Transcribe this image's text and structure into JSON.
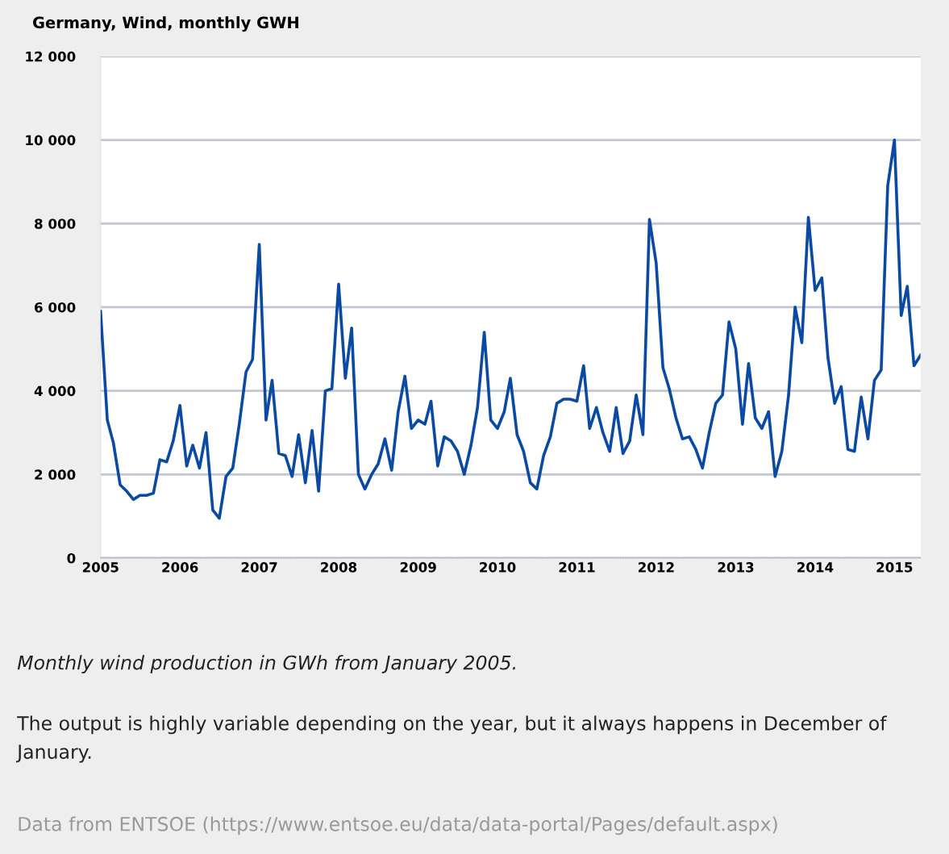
{
  "chart_data": {
    "type": "line",
    "title": "Germany, Wind, monthly GWH",
    "x": [
      "2005-01",
      "2005-02",
      "2005-03",
      "2005-04",
      "2005-05",
      "2005-06",
      "2005-07",
      "2005-08",
      "2005-09",
      "2005-10",
      "2005-11",
      "2005-12",
      "2006-01",
      "2006-02",
      "2006-03",
      "2006-04",
      "2006-05",
      "2006-06",
      "2006-07",
      "2006-08",
      "2006-09",
      "2006-10",
      "2006-11",
      "2006-12",
      "2007-01",
      "2007-02",
      "2007-03",
      "2007-04",
      "2007-05",
      "2007-06",
      "2007-07",
      "2007-08",
      "2007-09",
      "2007-10",
      "2007-11",
      "2007-12",
      "2008-01",
      "2008-02",
      "2008-03",
      "2008-04",
      "2008-05",
      "2008-06",
      "2008-07",
      "2008-08",
      "2008-09",
      "2008-10",
      "2008-11",
      "2008-12",
      "2009-01",
      "2009-02",
      "2009-03",
      "2009-04",
      "2009-05",
      "2009-06",
      "2009-07",
      "2009-08",
      "2009-09",
      "2009-10",
      "2009-11",
      "2009-12",
      "2010-01",
      "2010-02",
      "2010-03",
      "2010-04",
      "2010-05",
      "2010-06",
      "2010-07",
      "2010-08",
      "2010-09",
      "2010-10",
      "2010-11",
      "2010-12",
      "2011-01",
      "2011-02",
      "2011-03",
      "2011-04",
      "2011-05",
      "2011-06",
      "2011-07",
      "2011-08",
      "2011-09",
      "2011-10",
      "2011-11",
      "2011-12",
      "2012-01",
      "2012-02",
      "2012-03",
      "2012-04",
      "2012-05",
      "2012-06",
      "2012-07",
      "2012-08",
      "2012-09",
      "2012-10",
      "2012-11",
      "2012-12",
      "2013-01",
      "2013-02",
      "2013-03",
      "2013-04",
      "2013-05",
      "2013-06",
      "2013-07",
      "2013-08",
      "2013-09",
      "2013-10",
      "2013-11",
      "2013-12",
      "2014-01",
      "2014-02",
      "2014-03",
      "2014-04",
      "2014-05",
      "2014-06",
      "2014-07",
      "2014-08",
      "2014-09",
      "2014-10",
      "2014-11",
      "2014-12",
      "2015-01",
      "2015-02",
      "2015-03",
      "2015-04",
      "2015-05"
    ],
    "series": [
      {
        "color": "#0b4aa2",
        "values": [
          5900,
          3300,
          2750,
          1750,
          1600,
          1400,
          1500,
          1500,
          1550,
          2350,
          2300,
          2800,
          3650,
          2200,
          2700,
          2150,
          3000,
          1150,
          950,
          1950,
          2150,
          3200,
          4450,
          4750,
          7500,
          3300,
          4250,
          2500,
          2450,
          1950,
          2950,
          1800,
          3050,
          1600,
          4000,
          4050,
          6550,
          4300,
          5500,
          2000,
          1650,
          2000,
          2250,
          2850,
          2100,
          3500,
          4350,
          3100,
          3300,
          3200,
          3750,
          2200,
          2900,
          2800,
          2550,
          2000,
          2700,
          3600,
          5400,
          3300,
          3100,
          3500,
          4300,
          2950,
          2550,
          1800,
          1650,
          2450,
          2900,
          3700,
          3800,
          3800,
          3750,
          4600,
          3100,
          3600,
          3000,
          2550,
          3600,
          2500,
          2800,
          3900,
          2950,
          8100,
          7050,
          4550,
          4050,
          3350,
          2850,
          2900,
          2600,
          2150,
          3000,
          3700,
          3900,
          5650,
          5000,
          3200,
          4650,
          3350,
          3100,
          3500,
          1950,
          2550,
          3900,
          6000,
          5150,
          8150,
          6400,
          6700,
          4800,
          3700,
          4100,
          2600,
          2550,
          3850,
          2850,
          4250,
          4500,
          8900,
          10000,
          5800,
          6500,
          4600,
          4850
        ]
      }
    ],
    "xlim": [
      "2005-01",
      "2015-05"
    ],
    "xticks": [
      "2005",
      "2006",
      "2007",
      "2008",
      "2009",
      "2010",
      "2011",
      "2012",
      "2013",
      "2014",
      "2015"
    ],
    "ylim": [
      0,
      12000
    ],
    "yticks": [
      {
        "value": 0,
        "label": "0"
      },
      {
        "value": 2000,
        "label": "2 000"
      },
      {
        "value": 4000,
        "label": "4 000"
      },
      {
        "value": 6000,
        "label": "6 000"
      },
      {
        "value": 8000,
        "label": "8 000"
      },
      {
        "value": 10000,
        "label": "10 000"
      },
      {
        "value": 12000,
        "label": "12 000"
      }
    ],
    "grid": "y",
    "legend": false,
    "marker": "none",
    "line_style": "solid",
    "annotations": [
      "Monthly wind production in GWh from January 2005.",
      "The output is highly variable depending on the year, but it always happens in December of January.",
      "Data from ENTSOE (https://www.entsoe.eu/data/data-portal/Pages/default.aspx)"
    ]
  }
}
